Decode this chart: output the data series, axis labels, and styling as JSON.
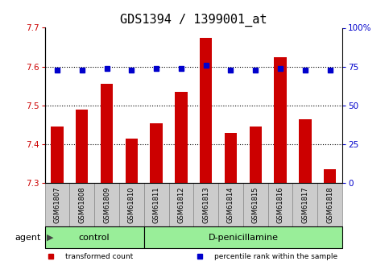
{
  "title": "GDS1394 / 1399001_at",
  "categories": [
    "GSM61807",
    "GSM61808",
    "GSM61809",
    "GSM61810",
    "GSM61811",
    "GSM61812",
    "GSM61813",
    "GSM61814",
    "GSM61815",
    "GSM61816",
    "GSM61817",
    "GSM61818"
  ],
  "bar_values": [
    7.445,
    7.49,
    7.555,
    7.415,
    7.455,
    7.535,
    7.675,
    7.43,
    7.445,
    7.625,
    7.465,
    7.335
  ],
  "percentile_values": [
    73,
    73,
    74,
    73,
    74,
    74,
    76,
    73,
    73,
    74,
    73,
    73
  ],
  "bar_color": "#cc0000",
  "percentile_color": "#0000cc",
  "ymin": 7.3,
  "ymax": 7.7,
  "y_ticks": [
    7.3,
    7.4,
    7.5,
    7.6,
    7.7
  ],
  "y2min": 0,
  "y2max": 100,
  "y2_ticks": [
    0,
    25,
    50,
    75,
    100
  ],
  "y2_tick_labels": [
    "0",
    "25",
    "50",
    "75",
    "100%"
  ],
  "groups": [
    {
      "label": "control",
      "start": 0,
      "end": 4
    },
    {
      "label": "D-penicillamine",
      "start": 4,
      "end": 12
    }
  ],
  "group_color": "#99ee99",
  "tick_label_color_left": "#cc0000",
  "tick_label_color_right": "#0000cc",
  "legend_items": [
    {
      "label": "transformed count",
      "color": "#cc0000"
    },
    {
      "label": "percentile rank within the sample",
      "color": "#0000cc"
    }
  ],
  "bar_width": 0.5,
  "dotted_line_color": "#000000",
  "cell_bg_color": "#cccccc",
  "title_fontsize": 11,
  "tick_fontsize": 7.5,
  "label_fontsize": 8
}
